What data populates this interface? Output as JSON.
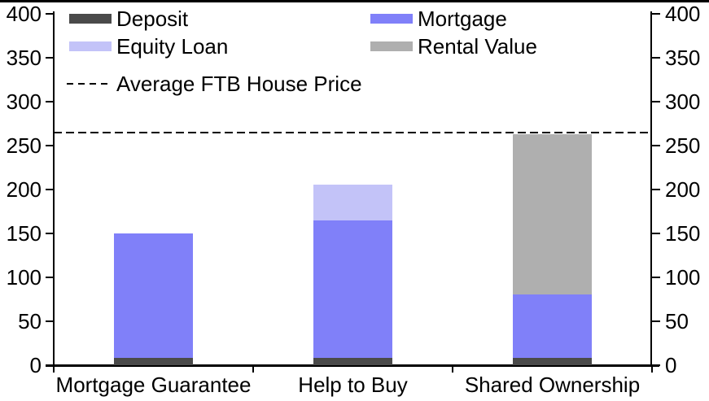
{
  "chart_data": {
    "type": "bar",
    "stacked": true,
    "categories": [
      "Mortgage Guarantee",
      "Help to Buy",
      "Shared Ownership"
    ],
    "series": [
      {
        "name": "Deposit",
        "color": "#4A4A4A",
        "values": [
          8,
          8,
          8
        ]
      },
      {
        "name": "Mortgage",
        "color": "#8080F9",
        "values": [
          142,
          157,
          73
        ]
      },
      {
        "name": "Equity Loan",
        "color": "#C3C3F8",
        "values": [
          0,
          41,
          0
        ]
      },
      {
        "name": "Rental Value",
        "color": "#AFAFAF",
        "values": [
          0,
          0,
          182
        ]
      }
    ],
    "stack_totals": [
      150,
      206,
      263
    ],
    "reference_line": {
      "label": "Average FTB House Price",
      "value": 265,
      "style": "dashed",
      "color": "#000000"
    },
    "y_axis": {
      "min": 0,
      "max": 400,
      "tick_interval": 50,
      "ticks": [
        0,
        50,
        100,
        150,
        200,
        250,
        300,
        350,
        400
      ],
      "sides": [
        "left",
        "right"
      ],
      "grid": false
    },
    "legend": {
      "position": "top",
      "columns": [
        {
          "items": [
            {
              "label": "Deposit",
              "swatch_color": "#4A4A4A",
              "swatch_type": "box"
            },
            {
              "label": "Equity Loan",
              "swatch_color": "#C3C3F8",
              "swatch_type": "box"
            },
            {
              "label": "Average FTB House Price",
              "swatch_color": "#000000",
              "swatch_type": "dashed-line"
            }
          ]
        },
        {
          "items": [
            {
              "label": "Mortgage",
              "swatch_color": "#8080F9",
              "swatch_type": "box"
            },
            {
              "label": "Rental Value",
              "swatch_color": "#AFAFAF",
              "swatch_type": "box"
            }
          ]
        }
      ]
    }
  }
}
